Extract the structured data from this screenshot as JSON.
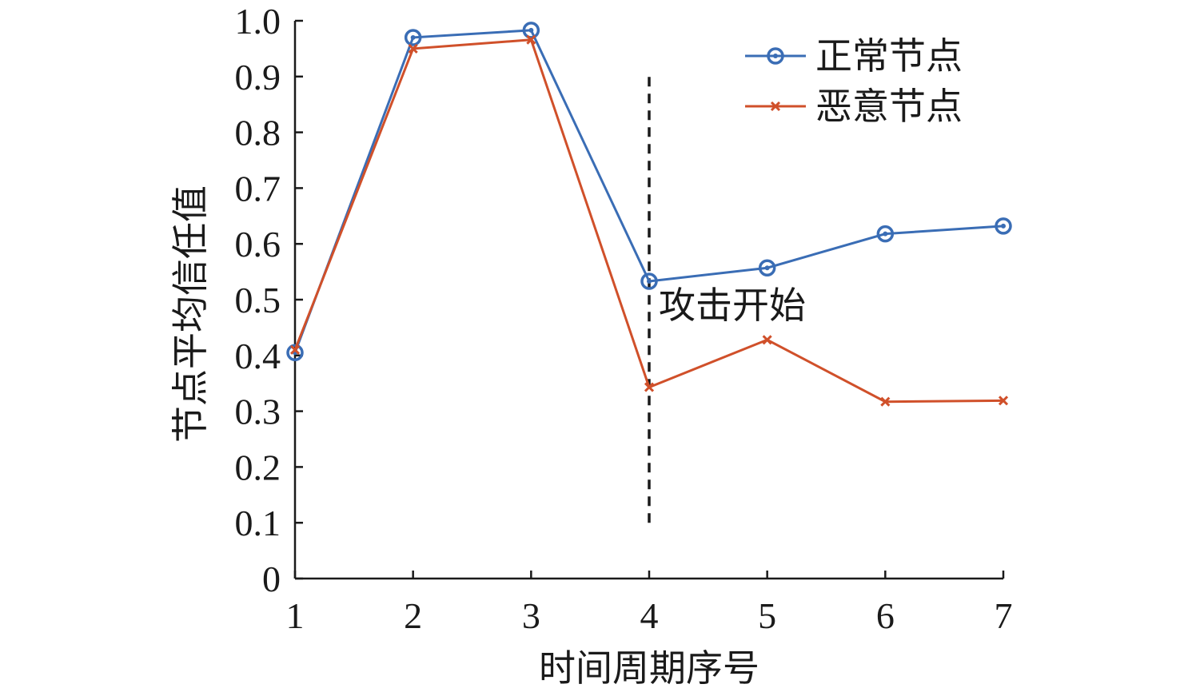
{
  "chart_data": {
    "type": "line",
    "title": "",
    "xlabel": "时间周期序号",
    "ylabel": "节点平均信任值",
    "x": [
      1,
      2,
      3,
      4,
      5,
      6,
      7
    ],
    "xlim": [
      1,
      7
    ],
    "ylim": [
      0,
      1.0
    ],
    "xticks": [
      "1",
      "2",
      "3",
      "4",
      "5",
      "6",
      "7"
    ],
    "yticks": [
      "0",
      "0.1",
      "0.2",
      "0.3",
      "0.4",
      "0.5",
      "0.6",
      "0.7",
      "0.8",
      "0.9",
      "1.0"
    ],
    "grid": false,
    "legend_position": "top-right",
    "series": [
      {
        "name": "正常节点",
        "values": [
          0.405,
          0.97,
          0.983,
          0.533,
          0.557,
          0.618,
          0.632
        ],
        "color": "#3a6db5",
        "marker": "circle"
      },
      {
        "name": "恶意节点",
        "values": [
          0.41,
          0.95,
          0.966,
          0.343,
          0.428,
          0.317,
          0.319
        ],
        "color": "#d0502a",
        "marker": "x"
      }
    ],
    "annotations": [
      {
        "type": "vline",
        "x": 4,
        "y_range": [
          0.1,
          0.9
        ],
        "style": "dashed",
        "color": "#1a1a1a"
      },
      {
        "type": "text",
        "text": "攻击开始",
        "x": 4,
        "y": 0.49
      }
    ]
  }
}
